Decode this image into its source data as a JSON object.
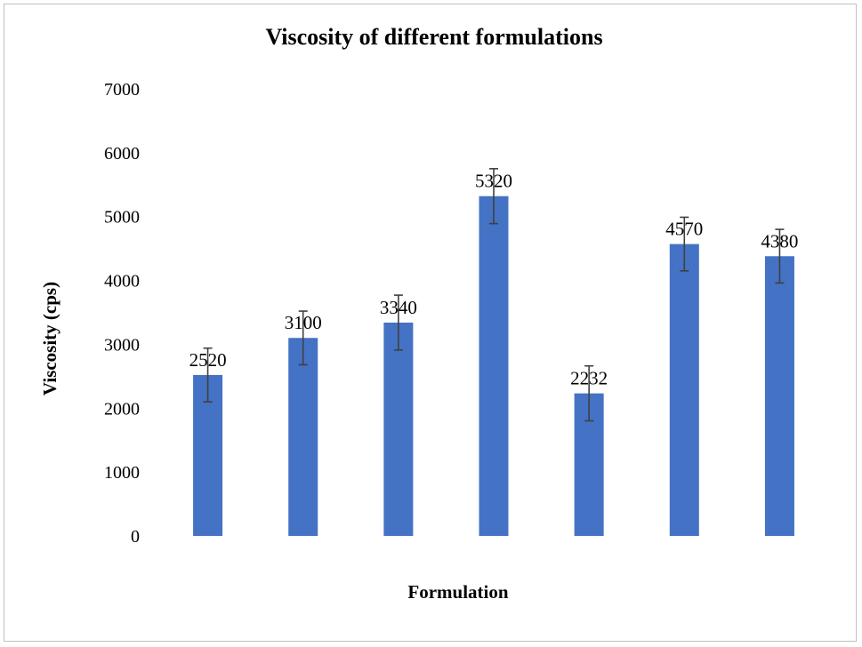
{
  "chart_data": {
    "type": "bar",
    "title": "Viscosity of different formulations",
    "xlabel": "Formulation",
    "ylabel": "Viscosity (cps)",
    "categories": [
      "",
      "",
      "",
      "",
      "",
      "",
      ""
    ],
    "values": [
      2520,
      3100,
      3340,
      5320,
      2232,
      4570,
      4380
    ],
    "data_labels": [
      "2520",
      "3100",
      "3340",
      "5320",
      "2232",
      "4570",
      "4380"
    ],
    "error": [
      420,
      420,
      430,
      430,
      430,
      420,
      420
    ],
    "ylim": [
      0,
      7000
    ],
    "yticks": [
      0,
      1000,
      2000,
      3000,
      4000,
      5000,
      6000,
      7000
    ],
    "ytick_labels": [
      "0",
      "1000",
      "2000",
      "3000",
      "4000",
      "5000",
      "6000",
      "7000"
    ],
    "grid": false,
    "legend": "none",
    "colors": {
      "bar": "#4472c4",
      "error_bar": "#404040",
      "border": "#bfbfbf"
    }
  }
}
